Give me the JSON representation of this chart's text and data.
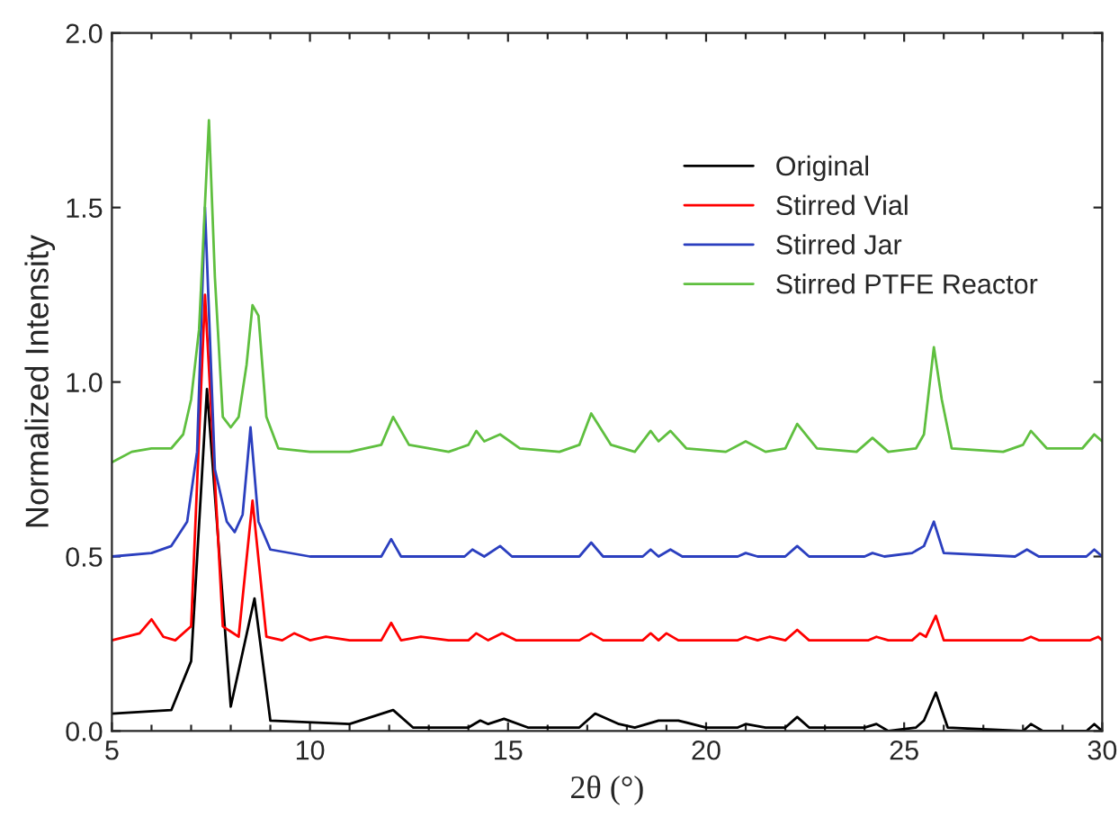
{
  "chart_data": {
    "type": "line",
    "xlabel": "2θ (°)",
    "ylabel": "Normalized Intensity",
    "xlim": [
      5,
      30
    ],
    "xticks": [
      5,
      {
        "value": 6,
        "label": null
      },
      {
        "value": 7,
        "label": null
      },
      {
        "value": 8,
        "label": null
      },
      {
        "value": 9,
        "label": null
      },
      10,
      {
        "value": 11,
        "label": null
      },
      {
        "value": 12,
        "label": null
      },
      {
        "value": 13,
        "label": null
      },
      {
        "value": 14,
        "label": null
      },
      15,
      {
        "value": 16,
        "label": null
      },
      {
        "value": 17,
        "label": null
      },
      {
        "value": 18,
        "label": null
      },
      {
        "value": 19,
        "label": null
      },
      20,
      {
        "value": 21,
        "label": null
      },
      {
        "value": 22,
        "label": null
      },
      {
        "value": 23,
        "label": null
      },
      {
        "value": 24,
        "label": null
      },
      25,
      {
        "value": 26,
        "label": null
      },
      {
        "value": 27,
        "label": null
      },
      {
        "value": 28,
        "label": null
      },
      {
        "value": 29,
        "label": null
      },
      30
    ],
    "ylim": [
      0,
      2.0
    ],
    "yticks": [
      {
        "value": 0,
        "label": "0.0"
      },
      0.5,
      {
        "value": 1,
        "label": "1.0"
      },
      1.5,
      {
        "value": 2,
        "label": "2.0"
      }
    ],
    "grid": false,
    "legend": "top right",
    "marker": "none",
    "line_style": "solid",
    "series": [
      {
        "name": "Original",
        "color": "#000000",
        "x": [
          5,
          6.5,
          7.0,
          7.4,
          8.0,
          8.6,
          9.0,
          11,
          12.1,
          12.6,
          14,
          14.3,
          14.5,
          14.9,
          15.5,
          16.8,
          17.2,
          17.8,
          18.2,
          18.8,
          19.3,
          20,
          20.8,
          21.0,
          21.5,
          22,
          22.3,
          22.6,
          24,
          24.3,
          24.6,
          25.3,
          25.5,
          25.8,
          26.1,
          28,
          28.2,
          28.5,
          29.6,
          29.8,
          30
        ],
        "values": [
          0.05,
          0.06,
          0.2,
          0.98,
          0.07,
          0.38,
          0.03,
          0.02,
          0.06,
          0.01,
          0.01,
          0.03,
          0.02,
          0.035,
          0.01,
          0.01,
          0.05,
          0.02,
          0.01,
          0.03,
          0.03,
          0.01,
          0.01,
          0.02,
          0.01,
          0.01,
          0.04,
          0.01,
          0.01,
          0.02,
          0.0,
          0.01,
          0.03,
          0.11,
          0.01,
          0.0,
          0.02,
          0.0,
          0.0,
          0.02,
          0.0
        ]
      },
      {
        "name": "Stirred Vial",
        "color": "#ff0000",
        "x": [
          5,
          5.7,
          6.0,
          6.3,
          6.6,
          7.0,
          7.35,
          7.8,
          8.2,
          8.55,
          8.9,
          9.3,
          9.6,
          10.0,
          10.4,
          11,
          11.8,
          12.05,
          12.3,
          12.8,
          13.5,
          14.0,
          14.2,
          14.5,
          14.85,
          15.2,
          16.8,
          17.1,
          17.4,
          18.4,
          18.6,
          18.8,
          19.0,
          19.3,
          20.8,
          21.0,
          21.3,
          21.6,
          22,
          22.3,
          22.6,
          24.1,
          24.3,
          24.6,
          25.2,
          25.4,
          25.55,
          25.8,
          26.0,
          28,
          28.2,
          28.4,
          29.7,
          29.9,
          30
        ],
        "values": [
          0.26,
          0.28,
          0.32,
          0.27,
          0.26,
          0.3,
          1.25,
          0.3,
          0.27,
          0.66,
          0.27,
          0.26,
          0.28,
          0.26,
          0.27,
          0.26,
          0.26,
          0.31,
          0.26,
          0.27,
          0.26,
          0.26,
          0.28,
          0.26,
          0.28,
          0.26,
          0.26,
          0.28,
          0.26,
          0.26,
          0.28,
          0.26,
          0.28,
          0.26,
          0.26,
          0.27,
          0.26,
          0.27,
          0.26,
          0.29,
          0.26,
          0.26,
          0.27,
          0.26,
          0.26,
          0.28,
          0.27,
          0.33,
          0.26,
          0.26,
          0.27,
          0.26,
          0.26,
          0.27,
          0.26
        ]
      },
      {
        "name": "Stirred Jar",
        "color": "#2b3fbf",
        "x": [
          5,
          6,
          6.5,
          6.9,
          7.15,
          7.35,
          7.6,
          7.9,
          8.1,
          8.3,
          8.5,
          8.7,
          9.0,
          10,
          11.8,
          12.05,
          12.3,
          13.9,
          14.1,
          14.4,
          14.8,
          15.1,
          16.8,
          17.1,
          17.4,
          18.4,
          18.6,
          18.8,
          19.1,
          19.4,
          20.8,
          21.0,
          21.3,
          22.0,
          22.3,
          22.6,
          24.0,
          24.2,
          24.5,
          25.2,
          25.5,
          25.75,
          26.0,
          27.8,
          28.1,
          28.4,
          29.6,
          29.8,
          30
        ],
        "values": [
          0.5,
          0.51,
          0.53,
          0.6,
          0.8,
          1.5,
          0.75,
          0.6,
          0.57,
          0.62,
          0.87,
          0.6,
          0.52,
          0.5,
          0.5,
          0.55,
          0.5,
          0.5,
          0.52,
          0.5,
          0.53,
          0.5,
          0.5,
          0.54,
          0.5,
          0.5,
          0.52,
          0.5,
          0.52,
          0.5,
          0.5,
          0.51,
          0.5,
          0.5,
          0.53,
          0.5,
          0.5,
          0.51,
          0.5,
          0.51,
          0.53,
          0.6,
          0.51,
          0.5,
          0.52,
          0.5,
          0.5,
          0.52,
          0.5
        ]
      },
      {
        "name": "Stirred PTFE Reactor",
        "color": "#5fbf3f",
        "x": [
          5,
          5.5,
          6.0,
          6.5,
          6.8,
          7.0,
          7.2,
          7.45,
          7.6,
          7.8,
          8.0,
          8.2,
          8.4,
          8.55,
          8.7,
          8.9,
          9.2,
          10,
          11,
          11.8,
          12.1,
          12.5,
          13.5,
          14.0,
          14.2,
          14.4,
          14.8,
          15.3,
          16.3,
          16.8,
          17.1,
          17.6,
          18.2,
          18.6,
          18.8,
          19.1,
          19.5,
          20.5,
          21.0,
          21.5,
          22.0,
          22.3,
          22.8,
          23.8,
          24.2,
          24.6,
          25.3,
          25.5,
          25.75,
          25.95,
          26.2,
          27.5,
          28.0,
          28.2,
          28.6,
          29.5,
          29.8,
          30
        ],
        "values": [
          0.77,
          0.8,
          0.81,
          0.81,
          0.85,
          0.95,
          1.15,
          1.75,
          1.3,
          0.9,
          0.87,
          0.9,
          1.05,
          1.22,
          1.19,
          0.9,
          0.81,
          0.8,
          0.8,
          0.82,
          0.9,
          0.82,
          0.8,
          0.82,
          0.86,
          0.83,
          0.85,
          0.81,
          0.8,
          0.82,
          0.91,
          0.82,
          0.8,
          0.86,
          0.83,
          0.86,
          0.81,
          0.8,
          0.83,
          0.8,
          0.81,
          0.88,
          0.81,
          0.8,
          0.84,
          0.8,
          0.81,
          0.85,
          1.1,
          0.95,
          0.81,
          0.8,
          0.82,
          0.86,
          0.81,
          0.81,
          0.85,
          0.83
        ]
      }
    ]
  }
}
